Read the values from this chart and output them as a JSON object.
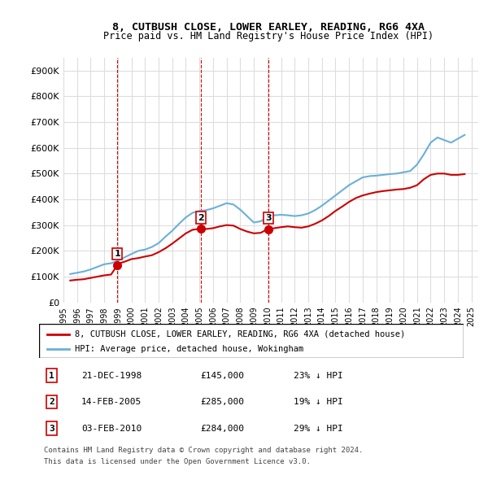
{
  "title": "8, CUTBUSH CLOSE, LOWER EARLEY, READING, RG6 4XA",
  "subtitle": "Price paid vs. HM Land Registry's House Price Index (HPI)",
  "ylim": [
    0,
    950000
  ],
  "yticks": [
    0,
    100000,
    200000,
    300000,
    400000,
    500000,
    600000,
    700000,
    800000,
    900000
  ],
  "ytick_labels": [
    "£0",
    "£100K",
    "£200K",
    "£300K",
    "£400K",
    "£500K",
    "£600K",
    "£700K",
    "£800K",
    "£900K"
  ],
  "xlim_start": 1995.5,
  "xlim_end": 2025.5,
  "xticks": [
    1995,
    1996,
    1997,
    1998,
    1999,
    2000,
    2001,
    2002,
    2003,
    2004,
    2005,
    2006,
    2007,
    2008,
    2009,
    2010,
    2011,
    2012,
    2013,
    2014,
    2015,
    2016,
    2017,
    2018,
    2019,
    2020,
    2021,
    2022,
    2023,
    2024,
    2025
  ],
  "hpi_color": "#6ab0d8",
  "price_color": "#cc0000",
  "sale_marker_color": "#cc0000",
  "vline_color": "#cc0000",
  "grid_color": "#dddddd",
  "background_color": "#ffffff",
  "legend_label_price": "8, CUTBUSH CLOSE, LOWER EARLEY, READING, RG6 4XA (detached house)",
  "legend_label_hpi": "HPI: Average price, detached house, Wokingham",
  "transactions": [
    {
      "number": 1,
      "year": 1998.97,
      "price": 145000,
      "date": "21-DEC-1998",
      "pct": "23%",
      "dir": "↓"
    },
    {
      "number": 2,
      "year": 2005.12,
      "price": 285000,
      "date": "14-FEB-2005",
      "pct": "19%",
      "dir": "↓"
    },
    {
      "number": 3,
      "year": 2010.09,
      "price": 284000,
      "date": "03-FEB-2010",
      "pct": "29%",
      "dir": "↓"
    }
  ],
  "hpi_data": {
    "years": [
      1995.5,
      1996,
      1996.5,
      1997,
      1997.5,
      1998,
      1998.5,
      1999,
      1999.5,
      2000,
      2000.5,
      2001,
      2001.5,
      2002,
      2002.5,
      2003,
      2003.5,
      2004,
      2004.5,
      2005,
      2005.5,
      2006,
      2006.5,
      2007,
      2007.5,
      2008,
      2008.5,
      2009,
      2009.5,
      2010,
      2010.5,
      2011,
      2011.5,
      2012,
      2012.5,
      2013,
      2013.5,
      2014,
      2014.5,
      2015,
      2015.5,
      2016,
      2016.5,
      2017,
      2017.5,
      2018,
      2018.5,
      2019,
      2019.5,
      2020,
      2020.5,
      2021,
      2021.5,
      2022,
      2022.5,
      2023,
      2023.5,
      2024,
      2024.5
    ],
    "values": [
      110000,
      115000,
      120000,
      128000,
      138000,
      148000,
      152000,
      162000,
      175000,
      188000,
      200000,
      205000,
      215000,
      230000,
      255000,
      278000,
      305000,
      330000,
      348000,
      355000,
      358000,
      365000,
      375000,
      385000,
      380000,
      360000,
      335000,
      310000,
      315000,
      330000,
      338000,
      340000,
      338000,
      335000,
      338000,
      345000,
      358000,
      375000,
      395000,
      415000,
      435000,
      455000,
      470000,
      485000,
      490000,
      492000,
      495000,
      498000,
      500000,
      505000,
      510000,
      535000,
      575000,
      620000,
      640000,
      630000,
      620000,
      635000,
      650000
    ]
  },
  "price_series_data": {
    "years": [
      1995.5,
      1996,
      1996.5,
      1997,
      1997.5,
      1998,
      1998.5,
      1998.97,
      1999,
      1999.5,
      2000,
      2000.5,
      2001,
      2001.5,
      2002,
      2002.5,
      2003,
      2003.5,
      2004,
      2004.5,
      2005,
      2005.12,
      2005.5,
      2006,
      2006.5,
      2007,
      2007.5,
      2008,
      2008.5,
      2009,
      2009.5,
      2010,
      2010.09,
      2010.5,
      2011,
      2011.5,
      2012,
      2012.5,
      2013,
      2013.5,
      2014,
      2014.5,
      2015,
      2015.5,
      2016,
      2016.5,
      2017,
      2017.5,
      2018,
      2018.5,
      2019,
      2019.5,
      2020,
      2020.5,
      2021,
      2021.5,
      2022,
      2022.5,
      2023,
      2023.5,
      2024,
      2024.5
    ],
    "values": [
      85000,
      88000,
      90000,
      95000,
      100000,
      105000,
      108000,
      145000,
      150000,
      158000,
      168000,
      172000,
      178000,
      183000,
      195000,
      210000,
      228000,
      248000,
      268000,
      282000,
      285000,
      285000,
      285000,
      288000,
      295000,
      300000,
      298000,
      285000,
      275000,
      268000,
      270000,
      284000,
      284000,
      288000,
      292000,
      295000,
      292000,
      290000,
      295000,
      305000,
      318000,
      335000,
      355000,
      372000,
      390000,
      405000,
      415000,
      422000,
      428000,
      432000,
      435000,
      438000,
      440000,
      445000,
      455000,
      478000,
      495000,
      500000,
      500000,
      495000,
      495000,
      498000
    ]
  },
  "footnote1": "Contains HM Land Registry data © Crown copyright and database right 2024.",
  "footnote2": "This data is licensed under the Open Government Licence v3.0."
}
